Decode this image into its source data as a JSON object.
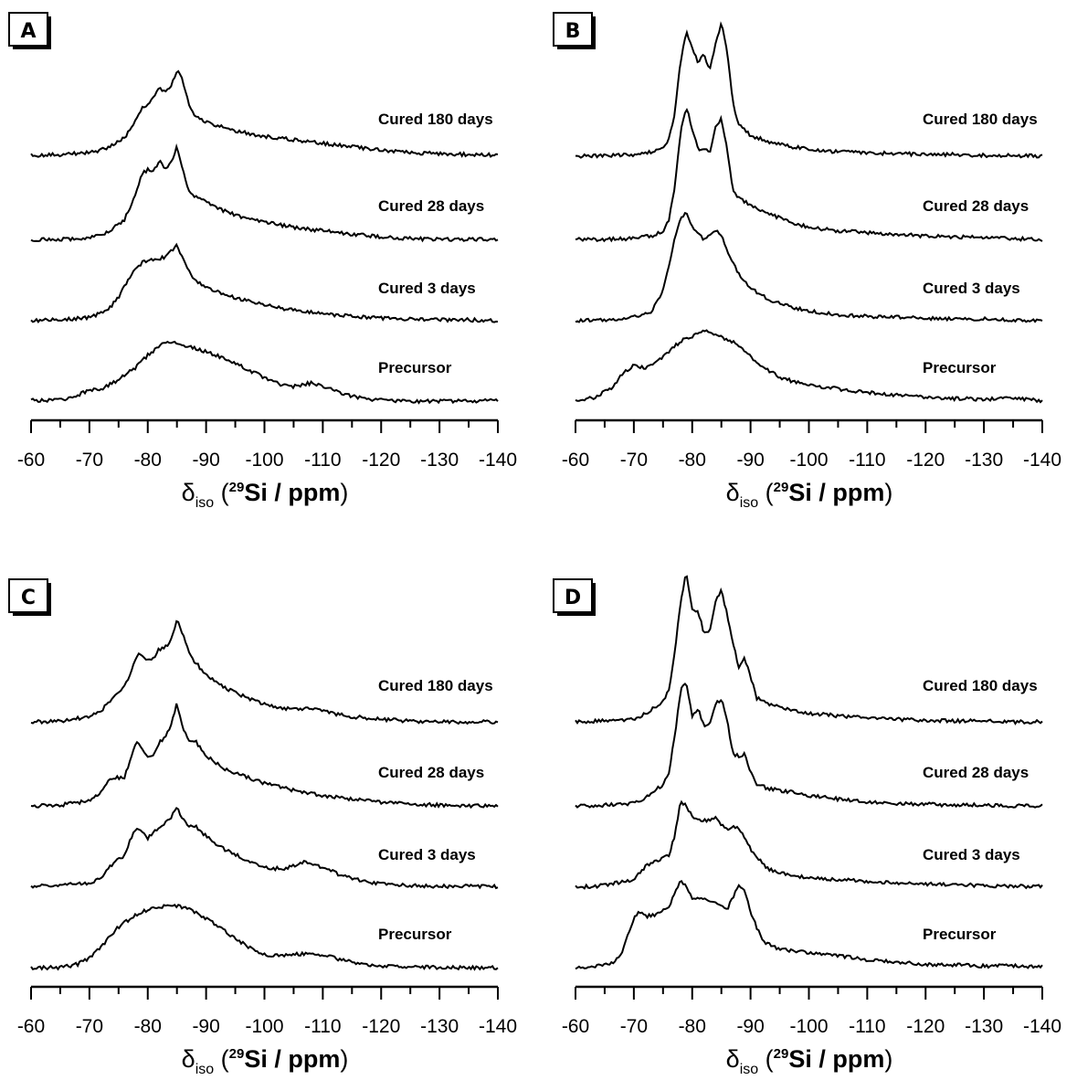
{
  "axis": {
    "ticks": [
      "-60",
      "-70",
      "-80",
      "-90",
      "-100",
      "-110",
      "-120",
      "-130",
      "-140"
    ],
    "title_symbol": "δ",
    "title_sub": "iso",
    "title_open": " (",
    "title_sup": "29",
    "title_main": "Si / ppm",
    "title_close": ")"
  },
  "chart_data": [
    {
      "type": "line",
      "panel": "A",
      "xlim": [
        -60,
        -140
      ],
      "series": [
        {
          "name": "Cured 180 days",
          "x": [
            -60,
            -65,
            -70,
            -73,
            -76,
            -78,
            -79,
            -80,
            -81,
            -82,
            -83,
            -84,
            -85,
            -86,
            -87,
            -88,
            -90,
            -92,
            -95,
            -100,
            -105,
            -110,
            -115,
            -120,
            -125,
            -130,
            -135,
            -140
          ],
          "y": [
            0.02,
            0.03,
            0.05,
            0.1,
            0.22,
            0.42,
            0.58,
            0.6,
            0.7,
            0.8,
            0.75,
            0.82,
            1.0,
            0.88,
            0.62,
            0.48,
            0.4,
            0.36,
            0.3,
            0.24,
            0.2,
            0.16,
            0.12,
            0.08,
            0.05,
            0.04,
            0.03,
            0.02
          ]
        },
        {
          "name": "Cured 28 days",
          "x": [
            -60,
            -65,
            -70,
            -73,
            -76,
            -78,
            -79,
            -80,
            -81,
            -82,
            -83,
            -84,
            -85,
            -86,
            -87,
            -88,
            -90,
            -92,
            -95,
            -100,
            -105,
            -110,
            -115,
            -120,
            -125,
            -130,
            -135,
            -140
          ],
          "y": [
            0.02,
            0.02,
            0.04,
            0.1,
            0.25,
            0.55,
            0.78,
            0.82,
            0.8,
            0.92,
            0.85,
            0.9,
            1.1,
            0.82,
            0.6,
            0.52,
            0.45,
            0.38,
            0.3,
            0.22,
            0.16,
            0.12,
            0.08,
            0.05,
            0.03,
            0.02,
            0.02,
            0.02
          ]
        },
        {
          "name": "Cured 3 days",
          "x": [
            -60,
            -65,
            -70,
            -73,
            -75,
            -77,
            -79,
            -81,
            -83,
            -85,
            -86,
            -87,
            -88,
            -90,
            -92,
            -95,
            -100,
            -105,
            -110,
            -115,
            -120,
            -125,
            -130,
            -135,
            -140
          ],
          "y": [
            0.01,
            0.02,
            0.05,
            0.12,
            0.28,
            0.52,
            0.68,
            0.72,
            0.74,
            0.88,
            0.74,
            0.58,
            0.48,
            0.4,
            0.34,
            0.27,
            0.19,
            0.13,
            0.09,
            0.06,
            0.04,
            0.03,
            0.02,
            0.02,
            0.01
          ]
        },
        {
          "name": "Precursor",
          "x": [
            -60,
            -65,
            -68,
            -70,
            -72,
            -75,
            -78,
            -80,
            -83,
            -86,
            -90,
            -95,
            -100,
            -103,
            -105,
            -108,
            -110,
            -113,
            -117,
            -120,
            -125,
            -130,
            -135,
            -140
          ],
          "y": [
            0.02,
            0.02,
            0.08,
            0.14,
            0.15,
            0.26,
            0.4,
            0.54,
            0.7,
            0.66,
            0.58,
            0.45,
            0.28,
            0.2,
            0.18,
            0.22,
            0.18,
            0.1,
            0.04,
            0.02,
            0.01,
            0.01,
            0.01,
            0.02
          ]
        }
      ]
    },
    {
      "type": "line",
      "panel": "B",
      "xlim": [
        -60,
        -140
      ],
      "series": [
        {
          "name": "Cured 180 days",
          "x": [
            -60,
            -65,
            -70,
            -73,
            -75,
            -76,
            -77,
            -78,
            -79,
            -80,
            -81,
            -82,
            -83,
            -84,
            -85,
            -86,
            -87,
            -88,
            -90,
            -93,
            -97,
            -100,
            -105,
            -110,
            -115,
            -120,
            -125,
            -130,
            -135,
            -140
          ],
          "y": [
            0.01,
            0.02,
            0.03,
            0.06,
            0.1,
            0.2,
            0.5,
            1.1,
            1.45,
            1.25,
            1.1,
            1.18,
            1.02,
            1.3,
            1.55,
            1.2,
            0.62,
            0.38,
            0.25,
            0.18,
            0.12,
            0.09,
            0.06,
            0.05,
            0.04,
            0.03,
            0.03,
            0.02,
            0.02,
            0.01
          ]
        },
        {
          "name": "Cured 28 days",
          "x": [
            -60,
            -65,
            -70,
            -73,
            -75,
            -76,
            -77,
            -78,
            -79,
            -80,
            -81,
            -82,
            -83,
            -84,
            -85,
            -86,
            -87,
            -88,
            -90,
            -93,
            -97,
            -100,
            -105,
            -110,
            -115,
            -120,
            -125,
            -130,
            -135,
            -140
          ],
          "y": [
            0.02,
            0.02,
            0.03,
            0.06,
            0.12,
            0.25,
            0.6,
            1.25,
            1.55,
            1.3,
            1.05,
            1.08,
            1.02,
            1.3,
            1.42,
            1.05,
            0.58,
            0.5,
            0.42,
            0.32,
            0.22,
            0.16,
            0.12,
            0.1,
            0.08,
            0.06,
            0.05,
            0.04,
            0.03,
            0.02
          ]
        },
        {
          "name": "Cured 3 days",
          "x": [
            -60,
            -65,
            -70,
            -73,
            -75,
            -77,
            -78,
            -79,
            -80,
            -82,
            -84,
            -85,
            -86,
            -88,
            -90,
            -93,
            -97,
            -100,
            -105,
            -110,
            -115,
            -120,
            -125,
            -130,
            -135,
            -140
          ],
          "y": [
            0.01,
            0.02,
            0.05,
            0.12,
            0.35,
            0.95,
            1.2,
            1.25,
            1.1,
            0.95,
            1.05,
            1.0,
            0.8,
            0.55,
            0.38,
            0.26,
            0.17,
            0.12,
            0.08,
            0.06,
            0.05,
            0.04,
            0.03,
            0.03,
            0.02,
            0.01
          ]
        },
        {
          "name": "Precursor",
          "x": [
            -60,
            -63,
            -66,
            -68,
            -70,
            -72,
            -74,
            -76,
            -78,
            -80,
            -82,
            -84,
            -86,
            -88,
            -90,
            -93,
            -96,
            -100,
            -105,
            -110,
            -115,
            -120,
            -125,
            -130,
            -135,
            -140
          ],
          "y": [
            0.02,
            0.05,
            0.15,
            0.32,
            0.42,
            0.4,
            0.46,
            0.58,
            0.7,
            0.76,
            0.82,
            0.78,
            0.72,
            0.66,
            0.52,
            0.36,
            0.26,
            0.2,
            0.15,
            0.11,
            0.08,
            0.06,
            0.04,
            0.03,
            0.05,
            0.01
          ]
        }
      ]
    },
    {
      "type": "line",
      "panel": "C",
      "xlim": [
        -60,
        -140
      ],
      "series": [
        {
          "name": "Cured 180 days",
          "x": [
            -60,
            -65,
            -70,
            -72,
            -73,
            -74,
            -76,
            -77,
            -78,
            -79,
            -80,
            -81,
            -82,
            -83,
            -84,
            -85,
            -86,
            -87,
            -88,
            -90,
            -93,
            -97,
            -100,
            -105,
            -108,
            -110,
            -115,
            -120,
            -125,
            -130,
            -135,
            -140
          ],
          "y": [
            0.02,
            0.03,
            0.08,
            0.15,
            0.22,
            0.28,
            0.42,
            0.58,
            0.78,
            0.8,
            0.72,
            0.76,
            0.86,
            0.88,
            0.96,
            1.2,
            1.02,
            0.85,
            0.72,
            0.56,
            0.42,
            0.3,
            0.22,
            0.16,
            0.18,
            0.14,
            0.08,
            0.05,
            0.03,
            0.02,
            0.02,
            0.02
          ]
        },
        {
          "name": "Cured 28 days",
          "x": [
            -60,
            -65,
            -70,
            -72,
            -73,
            -74,
            -76,
            -77,
            -78,
            -79,
            -80,
            -81,
            -82,
            -83,
            -84,
            -85,
            -86,
            -87,
            -88,
            -90,
            -93,
            -97,
            -100,
            -105,
            -110,
            -115,
            -120,
            -125,
            -130,
            -135,
            -140
          ],
          "y": [
            0.02,
            0.03,
            0.08,
            0.18,
            0.3,
            0.34,
            0.35,
            0.55,
            0.75,
            0.7,
            0.58,
            0.62,
            0.75,
            0.82,
            0.95,
            1.2,
            0.92,
            0.78,
            0.78,
            0.6,
            0.45,
            0.35,
            0.28,
            0.2,
            0.14,
            0.1,
            0.06,
            0.04,
            0.03,
            0.02,
            0.02
          ]
        },
        {
          "name": "Cured 3 days",
          "x": [
            -60,
            -65,
            -70,
            -72,
            -74,
            -76,
            -77,
            -78,
            -79,
            -80,
            -82,
            -84,
            -85,
            -86,
            -87,
            -88,
            -90,
            -93,
            -97,
            -100,
            -103,
            -105,
            -107,
            -110,
            -113,
            -117,
            -120,
            -125,
            -130,
            -135,
            -140
          ],
          "y": [
            0.02,
            0.03,
            0.06,
            0.12,
            0.28,
            0.38,
            0.55,
            0.68,
            0.66,
            0.58,
            0.7,
            0.82,
            0.92,
            0.8,
            0.7,
            0.72,
            0.6,
            0.45,
            0.32,
            0.24,
            0.22,
            0.26,
            0.3,
            0.24,
            0.15,
            0.08,
            0.05,
            0.03,
            0.02,
            0.02,
            0.02
          ]
        },
        {
          "name": "Precursor",
          "x": [
            -60,
            -65,
            -68,
            -70,
            -72,
            -75,
            -78,
            -80,
            -83,
            -85,
            -87,
            -90,
            -93,
            -95,
            -98,
            -100,
            -103,
            -105,
            -108,
            -110,
            -113,
            -117,
            -120,
            -125,
            -130,
            -135,
            -140
          ],
          "y": [
            0.01,
            0.01,
            0.05,
            0.12,
            0.25,
            0.48,
            0.62,
            0.68,
            0.72,
            0.72,
            0.68,
            0.58,
            0.44,
            0.34,
            0.22,
            0.16,
            0.14,
            0.16,
            0.18,
            0.16,
            0.1,
            0.05,
            0.03,
            0.02,
            0.01,
            0.01,
            0.01
          ]
        }
      ]
    },
    {
      "type": "line",
      "panel": "D",
      "xlim": [
        -60,
        -140
      ],
      "series": [
        {
          "name": "Cured 180 days",
          "x": [
            -60,
            -65,
            -70,
            -72,
            -74,
            -75,
            -76,
            -77,
            -78,
            -79,
            -80,
            -81,
            -82,
            -83,
            -84,
            -85,
            -86,
            -87,
            -88,
            -89,
            -90,
            -91,
            -93,
            -97,
            -100,
            -105,
            -110,
            -115,
            -120,
            -125,
            -130,
            -135,
            -140
          ],
          "y": [
            0.02,
            0.03,
            0.05,
            0.12,
            0.2,
            0.25,
            0.4,
            0.8,
            1.4,
            1.75,
            1.3,
            1.3,
            1.05,
            1.05,
            1.4,
            1.55,
            1.25,
            0.92,
            0.65,
            0.75,
            0.55,
            0.3,
            0.22,
            0.16,
            0.12,
            0.09,
            0.07,
            0.05,
            0.04,
            0.03,
            0.03,
            0.02,
            0.02
          ]
        },
        {
          "name": "Cured 28 days",
          "x": [
            -60,
            -65,
            -70,
            -72,
            -74,
            -75,
            -76,
            -77,
            -78,
            -79,
            -80,
            -81,
            -82,
            -83,
            -84,
            -85,
            -86,
            -87,
            -88,
            -89,
            -90,
            -91,
            -93,
            -97,
            -100,
            -105,
            -110,
            -115,
            -120,
            -125,
            -130,
            -135,
            -140
          ],
          "y": [
            0.02,
            0.03,
            0.05,
            0.12,
            0.22,
            0.26,
            0.4,
            0.82,
            1.35,
            1.45,
            1.05,
            1.15,
            0.95,
            0.98,
            1.2,
            1.25,
            1.0,
            0.62,
            0.6,
            0.62,
            0.42,
            0.28,
            0.22,
            0.18,
            0.14,
            0.1,
            0.07,
            0.05,
            0.04,
            0.03,
            0.03,
            0.02,
            0.02
          ]
        },
        {
          "name": "Cured 3 days",
          "x": [
            -60,
            -65,
            -70,
            -72,
            -74,
            -76,
            -77,
            -78,
            -79,
            -80,
            -82,
            -84,
            -85,
            -86,
            -87,
            -88,
            -90,
            -93,
            -97,
            -100,
            -105,
            -110,
            -115,
            -120,
            -125,
            -130,
            -135,
            -140
          ],
          "y": [
            0.01,
            0.03,
            0.1,
            0.25,
            0.32,
            0.38,
            0.6,
            1.0,
            0.95,
            0.82,
            0.78,
            0.8,
            0.74,
            0.68,
            0.7,
            0.7,
            0.45,
            0.22,
            0.15,
            0.12,
            0.1,
            0.08,
            0.06,
            0.05,
            0.04,
            0.03,
            0.02,
            0.02
          ]
        },
        {
          "name": "Precursor",
          "x": [
            -60,
            -63,
            -66,
            -68,
            -70,
            -71,
            -72,
            -74,
            -76,
            -77,
            -78,
            -79,
            -80,
            -82,
            -84,
            -86,
            -87,
            -88,
            -89,
            -90,
            -92,
            -95,
            -100,
            -105,
            -110,
            -115,
            -120,
            -125,
            -130,
            -135,
            -140
          ],
          "y": [
            0.01,
            0.02,
            0.05,
            0.18,
            0.58,
            0.66,
            0.6,
            0.62,
            0.7,
            0.88,
            1.0,
            0.95,
            0.82,
            0.8,
            0.76,
            0.68,
            0.82,
            0.95,
            0.9,
            0.65,
            0.32,
            0.22,
            0.18,
            0.15,
            0.1,
            0.07,
            0.05,
            0.04,
            0.03,
            0.03,
            0.02
          ]
        }
      ]
    }
  ]
}
